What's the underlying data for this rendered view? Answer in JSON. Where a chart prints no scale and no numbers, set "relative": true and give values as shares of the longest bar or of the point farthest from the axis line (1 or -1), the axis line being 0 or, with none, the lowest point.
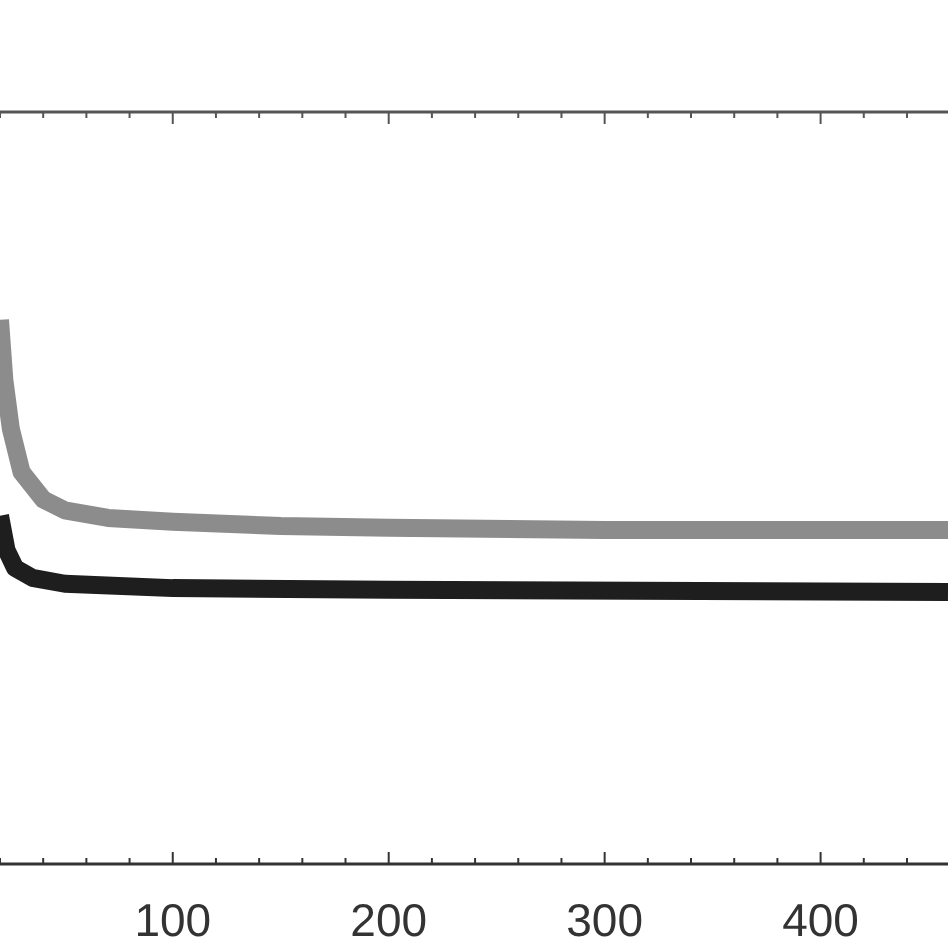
{
  "chart_data": {
    "type": "line",
    "relative": true,
    "xlim": [
      20,
      459
    ],
    "xticks": [
      {
        "value": 20,
        "label": null
      },
      {
        "value": 40,
        "label": null
      },
      {
        "value": 60,
        "label": null
      },
      {
        "value": 80,
        "label": null
      },
      100,
      {
        "value": 120,
        "label": null
      },
      {
        "value": 140,
        "label": null
      },
      {
        "value": 160,
        "label": null
      },
      {
        "value": 180,
        "label": null
      },
      200,
      {
        "value": 220,
        "label": null
      },
      {
        "value": 240,
        "label": null
      },
      {
        "value": 260,
        "label": null
      },
      {
        "value": 280,
        "label": null
      },
      300,
      {
        "value": 320,
        "label": null
      },
      {
        "value": 340,
        "label": null
      },
      {
        "value": 360,
        "label": null
      },
      {
        "value": 380,
        "label": null
      },
      400,
      {
        "value": 420,
        "label": null
      },
      {
        "value": 440,
        "label": null
      }
    ],
    "tick_labels": "x",
    "grid": false,
    "marker": "none",
    "line_style": "solid",
    "series": [
      {
        "color": "#8c8c8c",
        "x": [
          20,
          22,
          25,
          30,
          40,
          50,
          70,
          100,
          150,
          200,
          300,
          459
        ],
        "values": [
          1.0,
          0.89,
          0.8,
          0.72,
          0.67,
          0.65,
          0.636,
          0.629,
          0.621,
          0.618,
          0.614,
          0.614
        ]
      },
      {
        "color": "#1e1e1e",
        "x": [
          20,
          23,
          27,
          35,
          50,
          100,
          200,
          459
        ],
        "values": [
          0.64,
          0.577,
          0.544,
          0.526,
          0.515,
          0.507,
          0.504,
          0.5
        ]
      }
    ]
  }
}
